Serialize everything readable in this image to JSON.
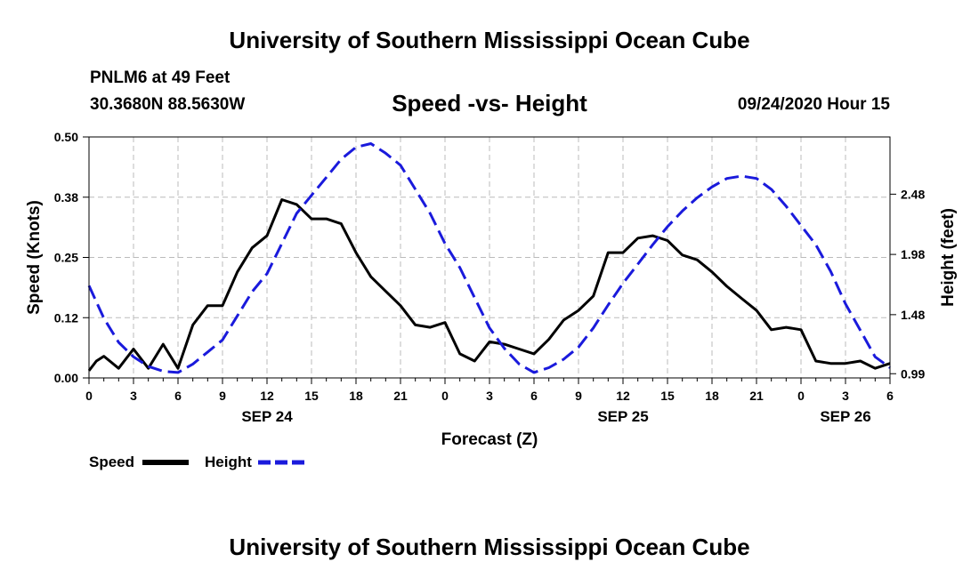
{
  "page": {
    "title_top": "University of Southern Mississippi Ocean Cube",
    "title_bottom": "University of Southern Mississippi Ocean Cube",
    "station": "PNLM6 at 49 Feet",
    "coords": "30.3680N 88.5630W",
    "subtitle": "Speed -vs- Height",
    "datetime": "09/24/2020 Hour 15"
  },
  "colors": {
    "speed": "#000000",
    "height": "#1a1adc",
    "grid": "#bbbbbb"
  },
  "chart_data": {
    "type": "line",
    "title": "Speed -vs- Height",
    "xlabel": "Forecast (Z)",
    "ylabel_left": "Speed (Knots)",
    "ylabel_right": "Height (feet)",
    "xlim": [
      0,
      54
    ],
    "ylim_left": [
      0,
      0.5
    ],
    "ylim_right": [
      0.955,
      2.955
    ],
    "x_ticks": [
      0,
      3,
      6,
      9,
      12,
      15,
      18,
      21,
      24,
      27,
      30,
      33,
      36,
      39,
      42,
      45,
      48,
      51,
      54
    ],
    "x_tick_labels": [
      "0",
      "3",
      "6",
      "9",
      "12",
      "15",
      "18",
      "21",
      "0",
      "3",
      "6",
      "9",
      "12",
      "15",
      "18",
      "21",
      "0",
      "3",
      "6"
    ],
    "date_labels": [
      {
        "x": 12,
        "label": "SEP 24"
      },
      {
        "x": 36,
        "label": "SEP 25"
      },
      {
        "x": 51,
        "label": "SEP 26"
      }
    ],
    "y_left_ticks": [
      0.0,
      0.125,
      0.25,
      0.375,
      0.5
    ],
    "y_left_tick_labels": [
      "0.00",
      "0.12",
      "0.25",
      "0.38",
      "0.50"
    ],
    "y_right_ticks": [
      0.99,
      1.48,
      1.98,
      2.48
    ],
    "y_right_tick_labels": [
      "0.99",
      "1.48",
      "1.98",
      "2.48"
    ],
    "grid": true,
    "legend_position": "bottom-left",
    "series": [
      {
        "name": "Speed",
        "axis": "left",
        "style": "solid",
        "x": [
          0,
          0.5,
          1,
          2,
          3,
          4,
          5,
          6,
          7,
          8,
          9,
          10,
          11,
          12,
          13,
          14,
          15,
          16,
          17,
          18,
          19,
          20,
          21,
          22,
          23,
          24,
          25,
          26,
          27,
          28,
          29,
          30,
          31,
          32,
          33,
          34,
          35,
          36,
          37,
          38,
          39,
          40,
          41,
          42,
          43,
          44,
          45,
          46,
          47,
          48,
          49,
          50,
          51,
          52,
          53,
          54
        ],
        "values": [
          0.015,
          0.035,
          0.045,
          0.02,
          0.06,
          0.02,
          0.07,
          0.02,
          0.11,
          0.15,
          0.15,
          0.22,
          0.27,
          0.295,
          0.37,
          0.36,
          0.33,
          0.33,
          0.32,
          0.26,
          0.21,
          0.18,
          0.15,
          0.11,
          0.105,
          0.115,
          0.05,
          0.035,
          0.075,
          0.07,
          0.06,
          0.05,
          0.08,
          0.12,
          0.14,
          0.17,
          0.26,
          0.26,
          0.29,
          0.295,
          0.285,
          0.255,
          0.245,
          0.22,
          0.19,
          0.165,
          0.14,
          0.1,
          0.105,
          0.1,
          0.035,
          0.03,
          0.03,
          0.035,
          0.02,
          0.03
        ]
      },
      {
        "name": "Height",
        "axis": "right",
        "style": "dashed",
        "x": [
          0,
          1,
          2,
          3,
          4,
          5,
          6,
          7,
          8,
          9,
          10,
          11,
          12,
          13,
          14,
          15,
          16,
          17,
          18,
          19,
          20,
          21,
          22,
          23,
          24,
          25,
          26,
          27,
          28,
          29,
          30,
          31,
          32,
          33,
          34,
          35,
          36,
          37,
          38,
          39,
          40,
          41,
          42,
          43,
          44,
          45,
          46,
          47,
          48,
          49,
          50,
          51,
          52,
          53,
          54
        ],
        "values": [
          1.72,
          1.45,
          1.25,
          1.13,
          1.05,
          1.01,
          1.0,
          1.07,
          1.17,
          1.27,
          1.47,
          1.67,
          1.82,
          2.07,
          2.32,
          2.47,
          2.62,
          2.77,
          2.87,
          2.9,
          2.82,
          2.72,
          2.52,
          2.32,
          2.07,
          1.87,
          1.62,
          1.37,
          1.2,
          1.07,
          1.0,
          1.04,
          1.11,
          1.21,
          1.37,
          1.56,
          1.74,
          1.9,
          2.06,
          2.21,
          2.34,
          2.45,
          2.54,
          2.61,
          2.63,
          2.61,
          2.52,
          2.38,
          2.22,
          2.06,
          1.84,
          1.57,
          1.35,
          1.13,
          1.04
        ]
      }
    ]
  }
}
